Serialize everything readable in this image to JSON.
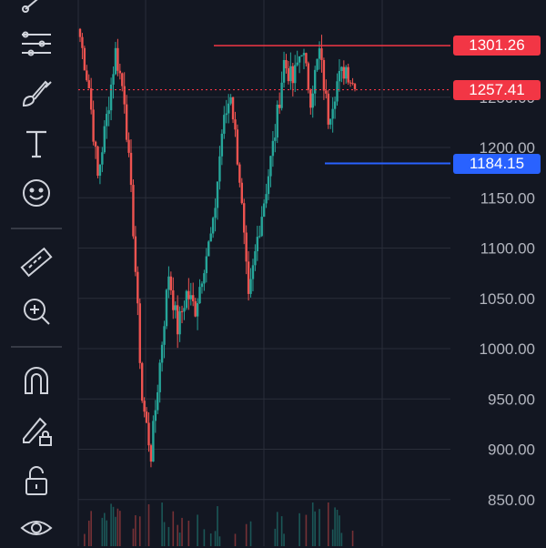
{
  "toolbar": {
    "tools": [
      {
        "name": "trend-line-tool",
        "icon": "trend-line-icon"
      },
      {
        "name": "fib-tool",
        "icon": "fibonacci-icon"
      },
      {
        "name": "brush-tool",
        "icon": "brush-icon"
      },
      {
        "name": "text-tool",
        "icon": "text-icon",
        "glyph": "T"
      },
      {
        "name": "emoji-tool",
        "icon": "smiley-icon"
      },
      {
        "name": "ruler-tool",
        "icon": "ruler-icon"
      },
      {
        "name": "zoom-tool",
        "icon": "zoom-in-icon"
      },
      {
        "name": "magnet-tool",
        "icon": "magnet-icon"
      },
      {
        "name": "lock-drawing-tool",
        "icon": "pencil-lock-icon"
      },
      {
        "name": "lock-all-tool",
        "icon": "lock-open-icon"
      },
      {
        "name": "visibility-tool",
        "icon": "eye-icon"
      }
    ]
  },
  "colors": {
    "up": "#26a69a",
    "down": "#ef5350",
    "blue": "#2962ff",
    "grid": "#2a2e39",
    "axis_text": "#b2b5be",
    "background": "#131722"
  },
  "price_tags": {
    "high": "1301.26",
    "current": "1257.41",
    "low": "1184.15"
  },
  "chart_data": {
    "type": "candlestick",
    "y_ticks": [
      "850.00",
      "900.00",
      "950.00",
      "1000.00",
      "1050.00",
      "1100.00",
      "1150.00",
      "1200.00",
      "1250.00"
    ],
    "ylim": [
      820,
      1360
    ],
    "grid": true,
    "levels": {
      "high": 1301.26,
      "current": 1257.41,
      "low": 1184.15
    },
    "close_path": [
      1310,
      1260,
      1170,
      1230,
      1295,
      1250,
      1120,
      950,
      895,
      985,
      1075,
      1020,
      1055,
      1040,
      1085,
      1120,
      1215,
      1255,
      1170,
      1045,
      1110,
      1160,
      1215,
      1285,
      1265,
      1300,
      1250,
      1295,
      1230,
      1265,
      1280,
      1258
    ],
    "volume_note": "volume bars at bottom"
  }
}
